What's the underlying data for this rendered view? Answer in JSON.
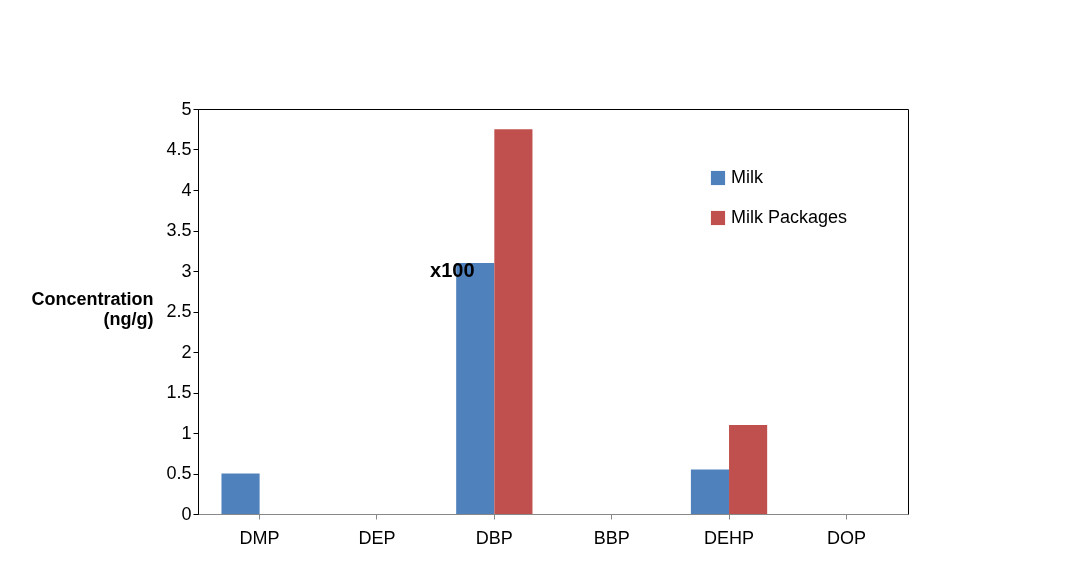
{
  "chart_data": {
    "type": "bar",
    "ylabel": "Concentration (ng/g)",
    "categories": [
      "DMP",
      "DEP",
      "DBP",
      "BBP",
      "DEHP",
      "DOP"
    ],
    "series": [
      {
        "name": "Milk",
        "color": "#4f81bd",
        "values": [
          0.5,
          0,
          3.1,
          0,
          0.55,
          0
        ]
      },
      {
        "name": "Milk Packages",
        "color": "#c0504d",
        "values": [
          0,
          0,
          4.75,
          0,
          1.1,
          0
        ]
      }
    ],
    "ylim": [
      0,
      5
    ],
    "yticks": [
      0,
      0.5,
      1,
      1.5,
      2,
      2.5,
      3,
      3.5,
      4,
      4.5,
      5
    ],
    "grid": false,
    "legend": "top right",
    "annotations": [
      {
        "text": "x100",
        "x": "DBP",
        "y": 3
      }
    ]
  }
}
